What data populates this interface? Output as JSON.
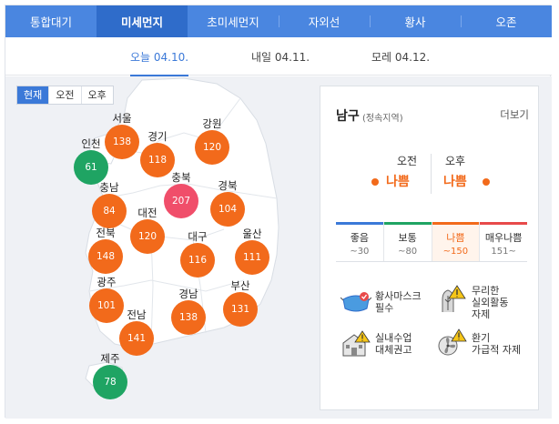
{
  "tabs": [
    {
      "label": "통합대기"
    },
    {
      "label": "미세먼지"
    },
    {
      "label": "초미세먼지"
    },
    {
      "label": "자외선"
    },
    {
      "label": "황사"
    },
    {
      "label": "오존"
    }
  ],
  "date_tabs": [
    {
      "label": "오늘 04.10."
    },
    {
      "label": "내일 04.11."
    },
    {
      "label": "모레 04.12."
    }
  ],
  "time_filter": [
    "현재",
    "오전",
    "오후"
  ],
  "regions": [
    {
      "name": "인천",
      "value": "61",
      "level": "good"
    },
    {
      "name": "서울",
      "value": "138",
      "level": "bad"
    },
    {
      "name": "경기",
      "value": "118",
      "level": "bad"
    },
    {
      "name": "강원",
      "value": "120",
      "level": "bad"
    },
    {
      "name": "충남",
      "value": "84",
      "level": "bad"
    },
    {
      "name": "충북",
      "value": "207",
      "level": "verybad"
    },
    {
      "name": "대전",
      "value": "120",
      "level": "bad"
    },
    {
      "name": "경북",
      "value": "104",
      "level": "bad"
    },
    {
      "name": "전북",
      "value": "148",
      "level": "bad"
    },
    {
      "name": "대구",
      "value": "116",
      "level": "bad"
    },
    {
      "name": "울산",
      "value": "111",
      "level": "bad"
    },
    {
      "name": "광주",
      "value": "101",
      "level": "bad"
    },
    {
      "name": "경남",
      "value": "138",
      "level": "bad"
    },
    {
      "name": "부산",
      "value": "131",
      "level": "bad"
    },
    {
      "name": "전남",
      "value": "141",
      "level": "bad"
    },
    {
      "name": "제주",
      "value": "78",
      "level": "good"
    }
  ],
  "panel": {
    "location": "남구",
    "location_sub": "(정속지역)",
    "more": "더보기",
    "am_label": "오전",
    "pm_label": "오후",
    "am_value": "나쁨",
    "pm_value": "나쁨",
    "legend": [
      {
        "name": "좋음",
        "range": "~30",
        "color": "#3b79d8"
      },
      {
        "name": "보통",
        "range": "~80",
        "color": "#1fa463"
      },
      {
        "name": "나쁨",
        "range": "~150",
        "color": "#f26a1b"
      },
      {
        "name": "매우나쁨",
        "range": "151~",
        "color": "#e84a4a"
      }
    ],
    "advice": [
      {
        "text1": "황사마스크",
        "text2": "필수",
        "text3": ""
      },
      {
        "text1": "무리한",
        "text2": "실외활동",
        "text3": "자제"
      },
      {
        "text1": "실내수업",
        "text2": "대체권고",
        "text3": ""
      },
      {
        "text1": "환기",
        "text2": "가급적 자제",
        "text3": ""
      }
    ]
  },
  "colors": {
    "tab_bg": "#4a86e0",
    "tab_active": "#2f6cca",
    "bad": "#f26a1b",
    "good": "#1fa463",
    "very_bad": "#f04e6a"
  }
}
